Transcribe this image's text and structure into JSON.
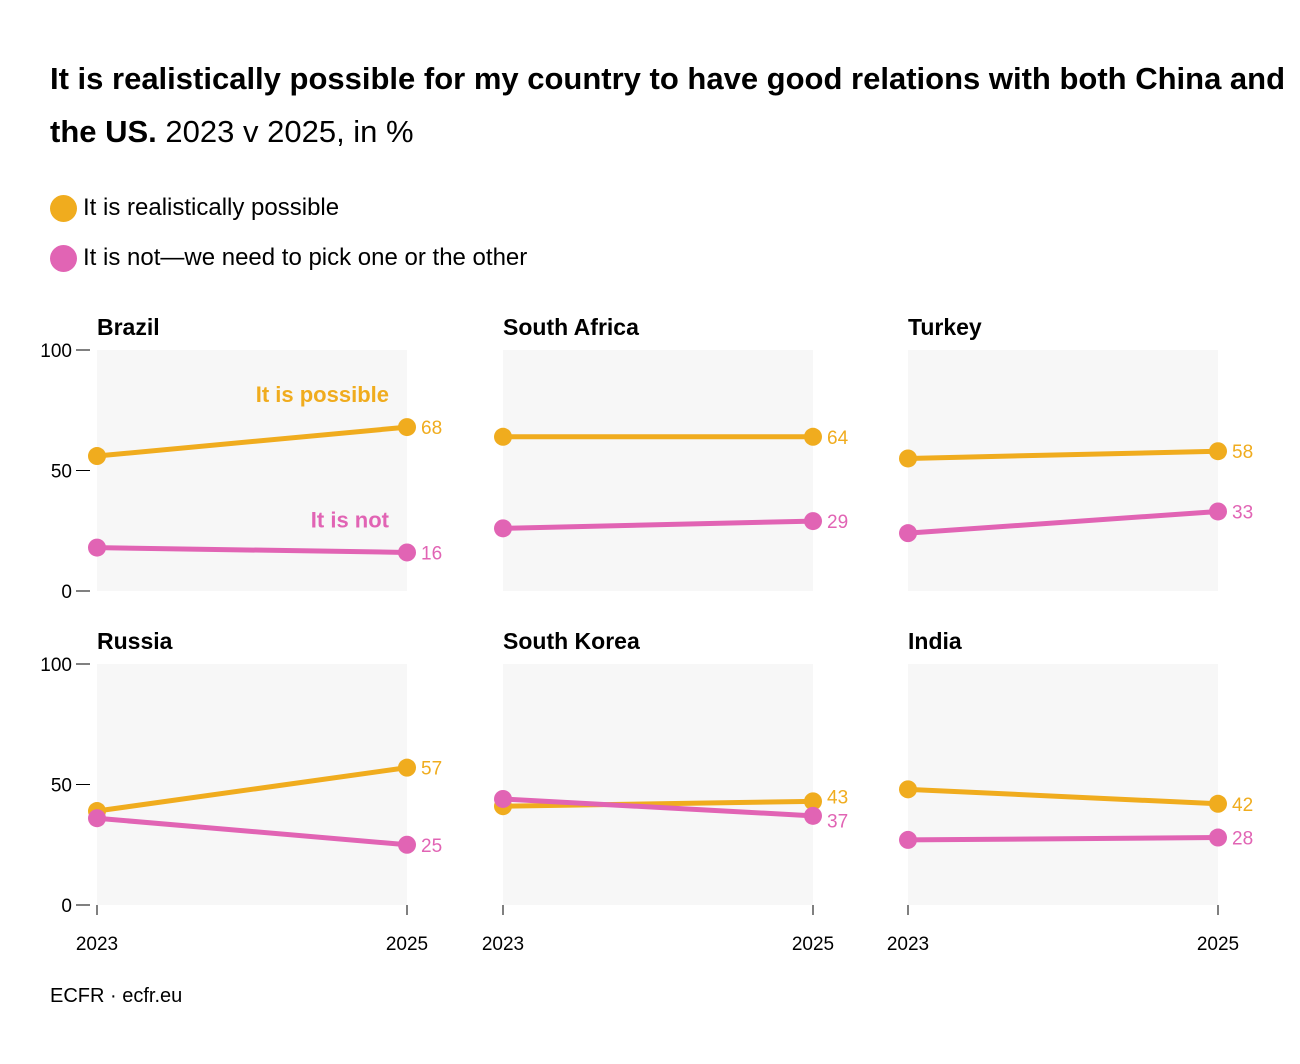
{
  "title": "It is realistically possible for my country to have good relations with both China and the US.",
  "subtitle": "2023 v 2025, in %",
  "source": "ECFR · ecfr.eu",
  "colors": {
    "possible": "#f0ac1e",
    "not": "#e164b4",
    "panel_bg": "#f7f7f7"
  },
  "legend": [
    {
      "label": "It is realistically possible",
      "color": "#f0ac1e"
    },
    {
      "label": "It is not—we need to pick one or the other",
      "color": "#e164b4"
    }
  ],
  "chart_data": {
    "type": "line",
    "layout": "small multiples 2x3",
    "x": [
      "2023",
      "2025"
    ],
    "ylim": [
      0,
      100
    ],
    "yticks": [
      0,
      50,
      100
    ],
    "annotations": {
      "possible": "It is possible",
      "not": "It is not"
    },
    "panels": [
      {
        "name": "Brazil",
        "series": [
          {
            "key": "possible",
            "values": [
              56,
              68
            ]
          },
          {
            "key": "not",
            "values": [
              18,
              16
            ]
          }
        ]
      },
      {
        "name": "South Africa",
        "series": [
          {
            "key": "possible",
            "values": [
              64,
              64
            ]
          },
          {
            "key": "not",
            "values": [
              26,
              29
            ]
          }
        ]
      },
      {
        "name": "Turkey",
        "series": [
          {
            "key": "possible",
            "values": [
              55,
              58
            ]
          },
          {
            "key": "not",
            "values": [
              24,
              33
            ]
          }
        ]
      },
      {
        "name": "Russia",
        "series": [
          {
            "key": "possible",
            "values": [
              39,
              57
            ]
          },
          {
            "key": "not",
            "values": [
              36,
              25
            ]
          }
        ]
      },
      {
        "name": "South Korea",
        "series": [
          {
            "key": "possible",
            "values": [
              41,
              43
            ]
          },
          {
            "key": "not",
            "values": [
              44,
              37
            ]
          }
        ]
      },
      {
        "name": "India",
        "series": [
          {
            "key": "possible",
            "values": [
              48,
              42
            ]
          },
          {
            "key": "not",
            "values": [
              27,
              28
            ]
          }
        ]
      }
    ]
  }
}
